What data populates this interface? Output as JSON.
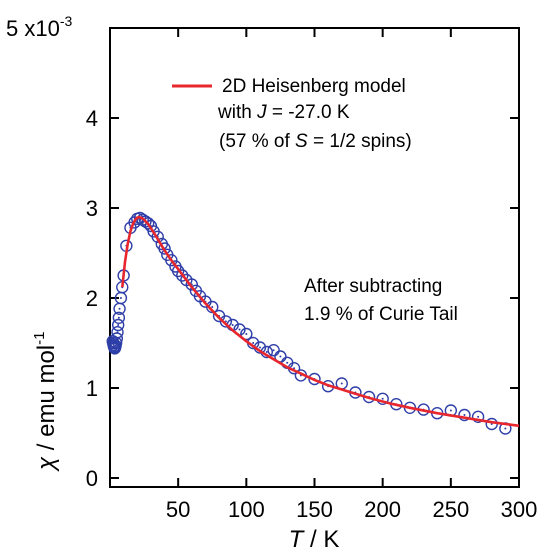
{
  "chart_data": {
    "type": "scatter",
    "title": "",
    "xlabel": {
      "var": "T",
      "unit": " / K"
    },
    "ylabel": {
      "var": "χ",
      "unit": " / emu mol",
      "sup": "-1"
    },
    "xlim": [
      0,
      300
    ],
    "ylim": [
      -0.1,
      5
    ],
    "x_ticks": [
      50,
      100,
      150,
      200,
      250,
      300
    ],
    "y_ticks": [
      0,
      1,
      2,
      3,
      4
    ],
    "y_top_label": {
      "mantissa": "5 x10",
      "exponent": "-3"
    },
    "grid": false,
    "legend": {
      "placement": "top",
      "label": "2D Heisenberg model",
      "line2_prefix": "with ",
      "line2_var": "J",
      "line2_suffix": " = -27.0 K",
      "line3_prefix": "(57 % of ",
      "line3_var": "S",
      "line3_suffix": " = 1/2 spins)"
    },
    "annotation": [
      "After subtracting",
      "1.9 % of Curie Tail"
    ],
    "colors": {
      "data": "#2f3fa8",
      "fit": "#e8262d",
      "axis": "#000000"
    },
    "series": [
      {
        "kind": "markers",
        "x": [
          2.0,
          2.3,
          2.6,
          2.9,
          3.2,
          3.5,
          3.8,
          4.1,
          4.5,
          5.0,
          5.5,
          6.0,
          6.5,
          7.0,
          8.0,
          9.0,
          10.0,
          12.0,
          15.0,
          18.0,
          20.0,
          22.0,
          24.0,
          26.0,
          28.0,
          30.0,
          32.0,
          35.0,
          38.0,
          40.0,
          42.0,
          45.0,
          48.0,
          50.0,
          53.0,
          56.0,
          60.0,
          63.0,
          66.0,
          70.0,
          75.0,
          80.0,
          85.0,
          90.0,
          95.0,
          100.0,
          105.0,
          110.0,
          115.0,
          120.0,
          125.0,
          130.0,
          135.0,
          140.0,
          150.0,
          160.0,
          170.0,
          180.0,
          190.0,
          200.0,
          210.0,
          220.0,
          230.0,
          240.0,
          250.0,
          260.0,
          270.0,
          280.0,
          290.0
        ],
        "y": [
          1.52,
          1.5,
          1.48,
          1.46,
          1.45,
          1.44,
          1.45,
          1.47,
          1.5,
          1.55,
          1.62,
          1.7,
          1.78,
          1.88,
          2.0,
          2.12,
          2.25,
          2.58,
          2.78,
          2.84,
          2.88,
          2.89,
          2.87,
          2.85,
          2.83,
          2.8,
          2.74,
          2.68,
          2.6,
          2.55,
          2.48,
          2.42,
          2.35,
          2.3,
          2.25,
          2.2,
          2.15,
          2.08,
          2.02,
          1.96,
          1.9,
          1.8,
          1.74,
          1.7,
          1.65,
          1.6,
          1.5,
          1.45,
          1.4,
          1.42,
          1.35,
          1.28,
          1.22,
          1.14,
          1.1,
          1.02,
          1.05,
          0.95,
          0.9,
          0.88,
          0.82,
          0.78,
          0.76,
          0.72,
          0.75,
          0.7,
          0.68,
          0.6,
          0.55
        ]
      },
      {
        "kind": "line",
        "name": "2D Heisenberg model",
        "x": [
          9,
          11,
          13,
          15,
          17,
          19,
          21,
          23,
          25,
          28,
          32,
          36,
          40,
          45,
          50,
          55,
          60,
          70,
          80,
          90,
          100,
          110,
          120,
          130,
          140,
          150,
          160,
          175,
          190,
          205,
          220,
          240,
          260,
          280,
          300
        ],
        "y": [
          2.12,
          2.4,
          2.6,
          2.74,
          2.83,
          2.88,
          2.9,
          2.89,
          2.87,
          2.82,
          2.73,
          2.63,
          2.53,
          2.42,
          2.32,
          2.22,
          2.12,
          1.94,
          1.78,
          1.64,
          1.52,
          1.41,
          1.32,
          1.23,
          1.16,
          1.09,
          1.03,
          0.96,
          0.89,
          0.83,
          0.78,
          0.72,
          0.67,
          0.62,
          0.58
        ]
      }
    ]
  }
}
